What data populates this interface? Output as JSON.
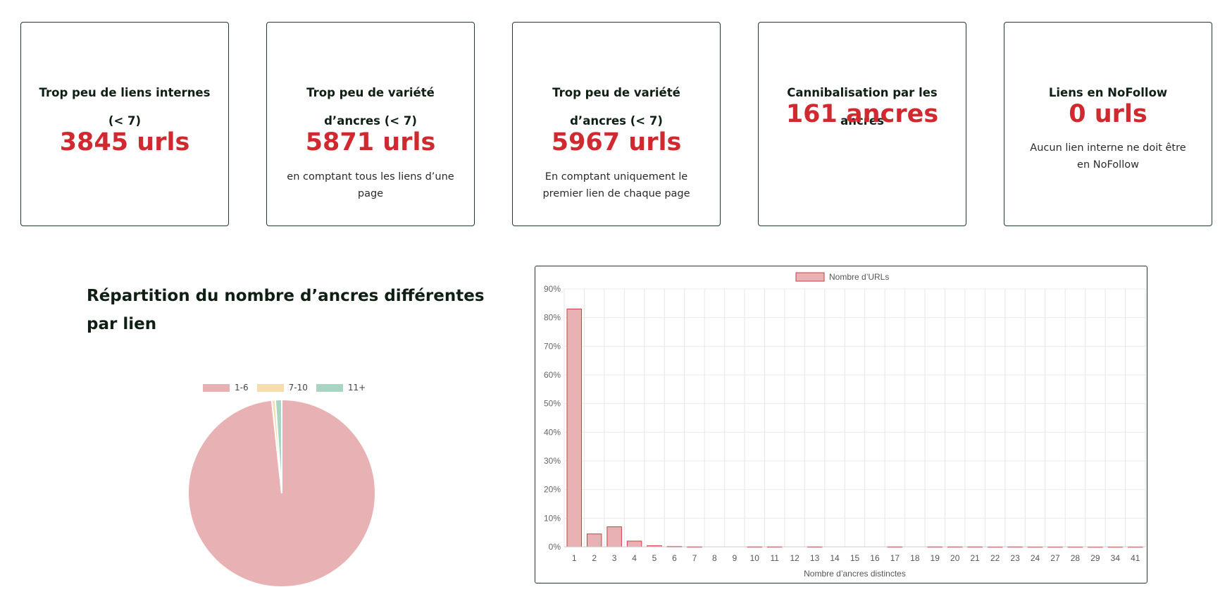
{
  "cards": [
    {
      "title": "Trop peu de liens internes (< 7)",
      "value": "3845 urls",
      "note": ""
    },
    {
      "title": "Trop peu de variété d’ancres (< 7)",
      "value": "5871 urls",
      "note": "en comptant tous les liens d’une page"
    },
    {
      "title": "Trop peu de variété d’ancres (< 7)",
      "value": "5967 urls",
      "note": "En comptant uniquement le premier lien de chaque page"
    },
    {
      "title": "Cannibalisation par les ancres",
      "value": "161 ancres",
      "note": ""
    },
    {
      "title": "Liens en NoFollow",
      "value": "0 urls",
      "note": "Aucun lien interne ne doit être en NoFollow"
    }
  ],
  "section_title": "Répartition du nombre d’ancres différentes par lien",
  "colors": {
    "accent_red": "#d0292f",
    "pie_1_6": "#e8b1b3",
    "pie_7_10": "#f7dcae",
    "pie_11": "#a9d5c3",
    "bar_fill": "#e8b1b3",
    "bar_border": "#cf3b45"
  },
  "chart_data": [
    {
      "type": "pie",
      "categories": [
        "1-6",
        "7-10",
        "11+"
      ],
      "values": [
        98.3,
        0.6,
        1.1
      ],
      "legend_position": "top"
    },
    {
      "type": "bar",
      "categories": [
        "1",
        "2",
        "3",
        "4",
        "5",
        "6",
        "7",
        "8",
        "9",
        "10",
        "11",
        "12",
        "13",
        "14",
        "15",
        "16",
        "17",
        "18",
        "19",
        "20",
        "21",
        "22",
        "23",
        "24",
        "27",
        "28",
        "29",
        "34",
        "41"
      ],
      "series": [
        {
          "name": "Nombre d’URLs",
          "values": [
            83,
            4.5,
            7,
            2,
            0.4,
            0.15,
            0.05,
            0,
            0,
            0.05,
            0.05,
            0,
            0.05,
            0,
            0,
            0,
            0.05,
            0,
            0.05,
            0.05,
            0.05,
            0.03,
            0.05,
            0.03,
            0.03,
            0.03,
            0.02,
            0.03,
            0.03
          ]
        }
      ],
      "xlabel": "Nombre d’ancres distinctes",
      "ylabel": "",
      "ylim": [
        0,
        90
      ],
      "yticks": [
        "0%",
        "10%",
        "20%",
        "30%",
        "40%",
        "50%",
        "60%",
        "70%",
        "80%",
        "90%"
      ],
      "grid": true,
      "legend_position": "top"
    }
  ]
}
